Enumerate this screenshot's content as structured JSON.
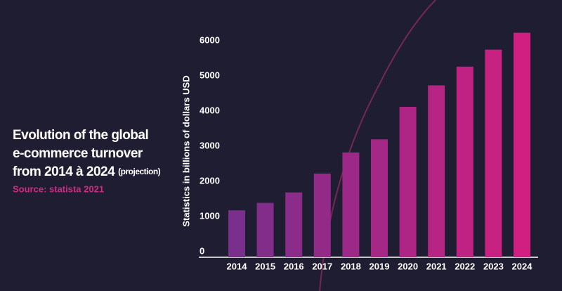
{
  "chart_data": {
    "type": "bar",
    "title_lines": [
      "Evolution of the global",
      "e-commerce turnover",
      "from 2014 à 2024"
    ],
    "title_note": "(projection)",
    "source": "Source: statista 2021",
    "y_label": "Statistics in billions of dollars USD",
    "categories": [
      "2014",
      "2015",
      "2016",
      "2017",
      "2018",
      "2019",
      "2020",
      "2021",
      "2022",
      "2023",
      "2024"
    ],
    "values": [
      1336,
      1548,
      1845,
      2382,
      2982,
      3354,
      4280,
      4891,
      5424,
      5908,
      6388
    ],
    "colors": [
      "#7a2f8c",
      "#d01f80"
    ],
    "ylim": [
      0,
      6000
    ],
    "yticks": [
      0,
      1000,
      2000,
      3000,
      4000,
      5000,
      6000
    ],
    "grid": false
  }
}
